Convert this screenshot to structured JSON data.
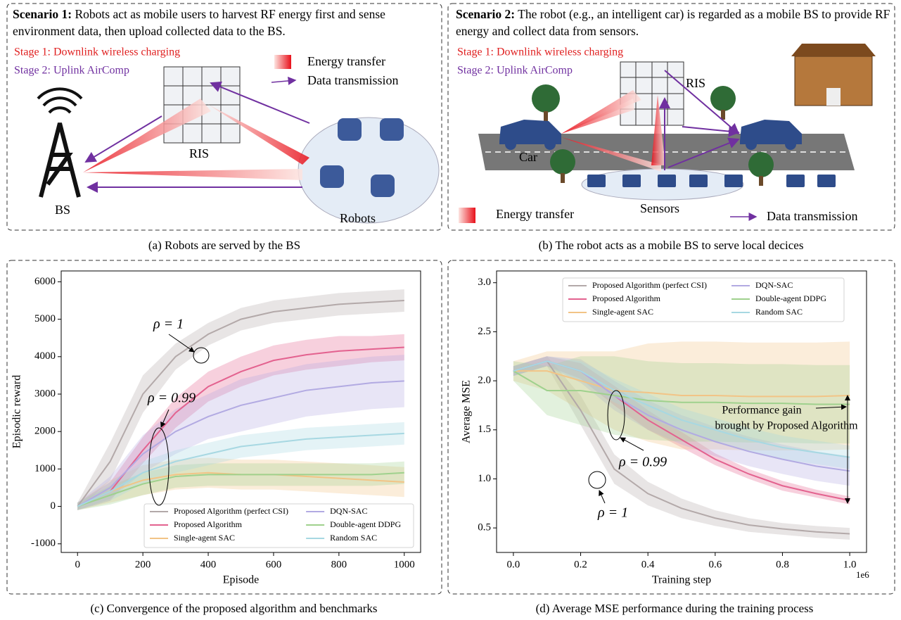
{
  "panel_a": {
    "scenario": "Scenario 1:",
    "description": "Robots act as mobile users to harvest RF energy first and sense environment data, then upload collected data to the BS.",
    "stage1": "Stage 1: Downlink wireless charging",
    "stage2": "Stage 2: Uplink AirComp",
    "legend_energy": "Energy transfer",
    "legend_data": "Data transmission",
    "ris": "RIS",
    "bs": "BS",
    "robots": "Robots",
    "caption": "(a) Robots are served by the BS"
  },
  "panel_b": {
    "scenario": "Scenario 2:",
    "description": "The robot (e.g., an intelligent car) is regarded as a mobile BS to provide RF energy and collect data from sensors.",
    "stage1": "Stage 1: Downlink wireless charging",
    "stage2": "Stage 2: Uplink AirComp",
    "ris": "RIS",
    "car": "Car",
    "sensors": "Sensors",
    "legend_energy": "Energy transfer",
    "legend_data": "Data transmission",
    "caption": "(b) The robot acts as a mobile BS to serve local decices"
  },
  "chart_data": [
    {
      "type": "line",
      "caption": "(c) Convergence of the proposed algorithm and benchmarks",
      "xlabel": "Episode",
      "ylabel": "Episodic reward",
      "x": [
        0,
        100,
        200,
        300,
        400,
        500,
        600,
        700,
        800,
        900,
        1000
      ],
      "series": [
        {
          "name": "Proposed Algorithm (perfect CSI)",
          "color": "#b3a9a9",
          "values": [
            0,
            1200,
            3000,
            4000,
            4600,
            5000,
            5200,
            5300,
            5400,
            5450,
            5500
          ],
          "std": [
            100,
            500,
            500,
            350,
            300,
            300,
            300,
            300,
            300,
            300,
            300
          ]
        },
        {
          "name": "Proposed Algorithm",
          "color": "#e3628f",
          "values": [
            0,
            400,
            1500,
            2500,
            3200,
            3600,
            3900,
            4050,
            4150,
            4200,
            4250
          ],
          "std": [
            100,
            250,
            350,
            400,
            400,
            400,
            400,
            400,
            400,
            350,
            350
          ]
        },
        {
          "name": "Single-agent SAC",
          "color": "#f2c486",
          "values": [
            0,
            400,
            700,
            850,
            900,
            850,
            850,
            800,
            750,
            700,
            650
          ],
          "std": [
            100,
            300,
            400,
            400,
            400,
            400,
            400,
            400,
            400,
            400,
            400
          ]
        },
        {
          "name": "DQN-SAC",
          "color": "#b2aae2",
          "values": [
            0,
            500,
            1400,
            2000,
            2400,
            2700,
            2900,
            3100,
            3200,
            3300,
            3350
          ],
          "std": [
            100,
            300,
            500,
            600,
            600,
            700,
            700,
            700,
            700,
            700,
            700
          ]
        },
        {
          "name": "Double-agent DDPG",
          "color": "#9fd18d",
          "values": [
            0,
            300,
            600,
            800,
            850,
            850,
            850,
            850,
            850,
            850,
            900
          ],
          "std": [
            100,
            250,
            300,
            300,
            300,
            300,
            300,
            300,
            300,
            300,
            300
          ]
        },
        {
          "name": "Random SAC",
          "color": "#a7d8e2",
          "values": [
            0,
            400,
            900,
            1200,
            1400,
            1600,
            1700,
            1800,
            1850,
            1900,
            1950
          ],
          "std": [
            100,
            250,
            300,
            300,
            300,
            300,
            300,
            300,
            300,
            300,
            300
          ]
        }
      ],
      "xlim": [
        -50,
        1050
      ],
      "ylim": [
        -1230,
        6290
      ],
      "xticks": [
        0,
        200,
        400,
        600,
        800,
        1000
      ],
      "yticks": [
        -1000,
        0,
        1000,
        2000,
        3000,
        4000,
        5000,
        6000
      ],
      "legend": "lower right",
      "annotations": [
        "ρ = 1",
        "ρ = 0.99"
      ]
    },
    {
      "type": "line",
      "caption": "(d) Average MSE performance during the training process",
      "xlabel": "Training step",
      "ylabel": "Average MSE",
      "x_offset_label": "1e6",
      "x": [
        0,
        0.1,
        0.2,
        0.3,
        0.4,
        0.5,
        0.6,
        0.7,
        0.8,
        0.9,
        1.0
      ],
      "series": [
        {
          "name": "Proposed Algorithm (perfect CSI)",
          "color": "#b3a9a9",
          "values": [
            2.1,
            2.2,
            1.7,
            1.1,
            0.85,
            0.7,
            0.6,
            0.53,
            0.49,
            0.46,
            0.44
          ],
          "std": [
            0.05,
            0.05,
            0.15,
            0.15,
            0.12,
            0.1,
            0.08,
            0.07,
            0.06,
            0.06,
            0.06
          ]
        },
        {
          "name": "Proposed Algorithm",
          "color": "#e3628f",
          "values": [
            2.1,
            2.2,
            2.1,
            1.85,
            1.6,
            1.4,
            1.2,
            1.05,
            0.93,
            0.85,
            0.78
          ],
          "std": [
            0.05,
            0.05,
            0.08,
            0.1,
            0.1,
            0.08,
            0.06,
            0.05,
            0.05,
            0.04,
            0.04
          ]
        },
        {
          "name": "Single-agent SAC",
          "color": "#f2c486",
          "values": [
            2.1,
            2.1,
            2.0,
            1.9,
            1.88,
            1.85,
            1.85,
            1.84,
            1.84,
            1.84,
            1.85
          ],
          "std": [
            0.1,
            0.2,
            0.3,
            0.4,
            0.5,
            0.55,
            0.55,
            0.55,
            0.55,
            0.55,
            0.55
          ]
        },
        {
          "name": "DQN-SAC",
          "color": "#b2aae2",
          "values": [
            2.1,
            2.2,
            2.1,
            1.85,
            1.65,
            1.5,
            1.38,
            1.28,
            1.2,
            1.13,
            1.08
          ],
          "std": [
            0.05,
            0.05,
            0.12,
            0.15,
            0.15,
            0.15,
            0.15,
            0.15,
            0.15,
            0.15,
            0.15
          ]
        },
        {
          "name": "Double-agent DDPG",
          "color": "#9fd18d",
          "values": [
            2.1,
            1.9,
            1.9,
            1.85,
            1.8,
            1.78,
            1.78,
            1.77,
            1.77,
            1.76,
            1.76
          ],
          "std": [
            0.1,
            0.25,
            0.35,
            0.4,
            0.4,
            0.4,
            0.4,
            0.4,
            0.4,
            0.4,
            0.4
          ]
        },
        {
          "name": "Random SAC",
          "color": "#a7d8e2",
          "values": [
            2.1,
            2.2,
            2.1,
            1.9,
            1.75,
            1.6,
            1.5,
            1.4,
            1.32,
            1.27,
            1.22
          ],
          "std": [
            0.05,
            0.05,
            0.1,
            0.12,
            0.12,
            0.12,
            0.12,
            0.12,
            0.12,
            0.12,
            0.12
          ]
        }
      ],
      "xlim": [
        -0.05,
        1.05
      ],
      "ylim": [
        0.25,
        3.12
      ],
      "xticks": [
        {
          "value": 0,
          "label": "0.0"
        },
        0.2,
        0.4,
        0.6,
        0.8,
        {
          "value": 1,
          "label": "1.0"
        }
      ],
      "yticks": [
        0.5,
        {
          "value": 1,
          "label": "1.0"
        },
        1.5,
        {
          "value": 2,
          "label": "2.0"
        },
        2.5,
        {
          "value": 3,
          "label": "3.0"
        }
      ],
      "legend": "upper center",
      "annotations": [
        "ρ = 0.99",
        "ρ = 1"
      ],
      "annotation_gain": [
        "Performance gain",
        "brought by Proposed Algorithm"
      ]
    }
  ]
}
